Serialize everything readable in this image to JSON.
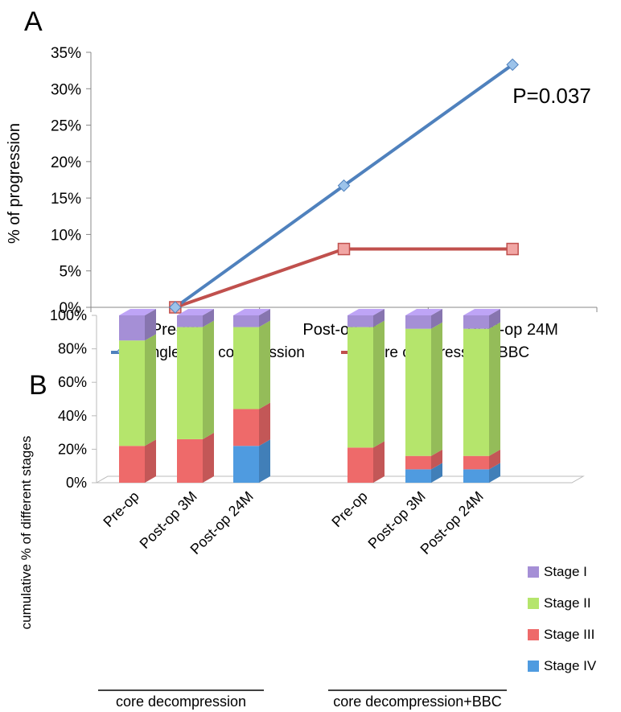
{
  "chart_data": [
    {
      "panel_label": "A",
      "type": "line",
      "categories": [
        "Pre-op",
        "Post-op 3M",
        "Post-op 24M"
      ],
      "ylabel": "% of progression",
      "ylim": [
        0,
        35
      ],
      "yticks": [
        "0%",
        "5%",
        "10%",
        "15%",
        "20%",
        "25%",
        "30%",
        "35%"
      ],
      "grid": false,
      "legend_placement": "bottom",
      "annotation": "P=0.037",
      "series": [
        {
          "name": "single core compression",
          "values": [
            0,
            16.7,
            33.3
          ],
          "color": "#4f81bd",
          "marker": "diamond"
        },
        {
          "name": "core compression+BBC",
          "values": [
            0,
            8,
            8
          ],
          "color": "#c0504d",
          "marker": "square"
        }
      ]
    },
    {
      "panel_label": "B",
      "type": "bar",
      "stacked": true,
      "style_3d": true,
      "ylabel": "cumulative % of different stages",
      "ylim": [
        0,
        100
      ],
      "yticks": [
        "0%",
        "20%",
        "40%",
        "60%",
        "80%",
        "100%"
      ],
      "legend_placement": "right",
      "groups": [
        {
          "label": "core decompression",
          "categories": [
            "Pre-op",
            "Post-op 3M",
            "Post-op 24M"
          ]
        },
        {
          "label": "core decompression+BBC",
          "categories": [
            "Pre-op",
            "Post-op 3M",
            "Post-op 24M"
          ]
        }
      ],
      "series": [
        {
          "name": "Stage IV",
          "color": "#4f9be0",
          "values": [
            0,
            0,
            22,
            0,
            8,
            8
          ]
        },
        {
          "name": "Stage III",
          "color": "#ee6a6a",
          "values": [
            22,
            26,
            22,
            21,
            8,
            8
          ]
        },
        {
          "name": "Stage II",
          "color": "#b5e56c",
          "values": [
            63,
            67,
            49,
            72,
            76,
            76
          ]
        },
        {
          "name": "Stage  I",
          "color": "#a58fd6",
          "values": [
            15,
            7,
            7,
            7,
            8,
            8
          ]
        }
      ]
    }
  ]
}
